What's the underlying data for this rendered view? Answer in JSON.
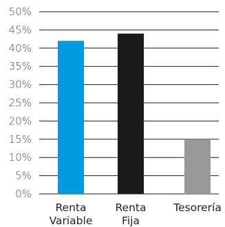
{
  "chart_data": {
    "type": "bar",
    "categories": [
      [
        "Renta",
        "Variable"
      ],
      [
        "Renta",
        "Fija"
      ],
      [
        "Tesorería"
      ]
    ],
    "values": [
      42,
      44,
      15
    ],
    "colors": [
      "#0099dd",
      "#1a1a1a",
      "#999999"
    ],
    "ylim": [
      0,
      50
    ],
    "yticks": [
      0,
      5,
      10,
      15,
      20,
      25,
      30,
      35,
      40,
      45,
      50
    ],
    "ytick_labels": [
      "0%",
      "5%",
      "10%",
      "15%",
      "20%",
      "25%",
      "30%",
      "35%",
      "40%",
      "45%",
      "50%"
    ],
    "grid": true,
    "legend": false,
    "title": "",
    "xlabel": "",
    "ylabel": ""
  }
}
